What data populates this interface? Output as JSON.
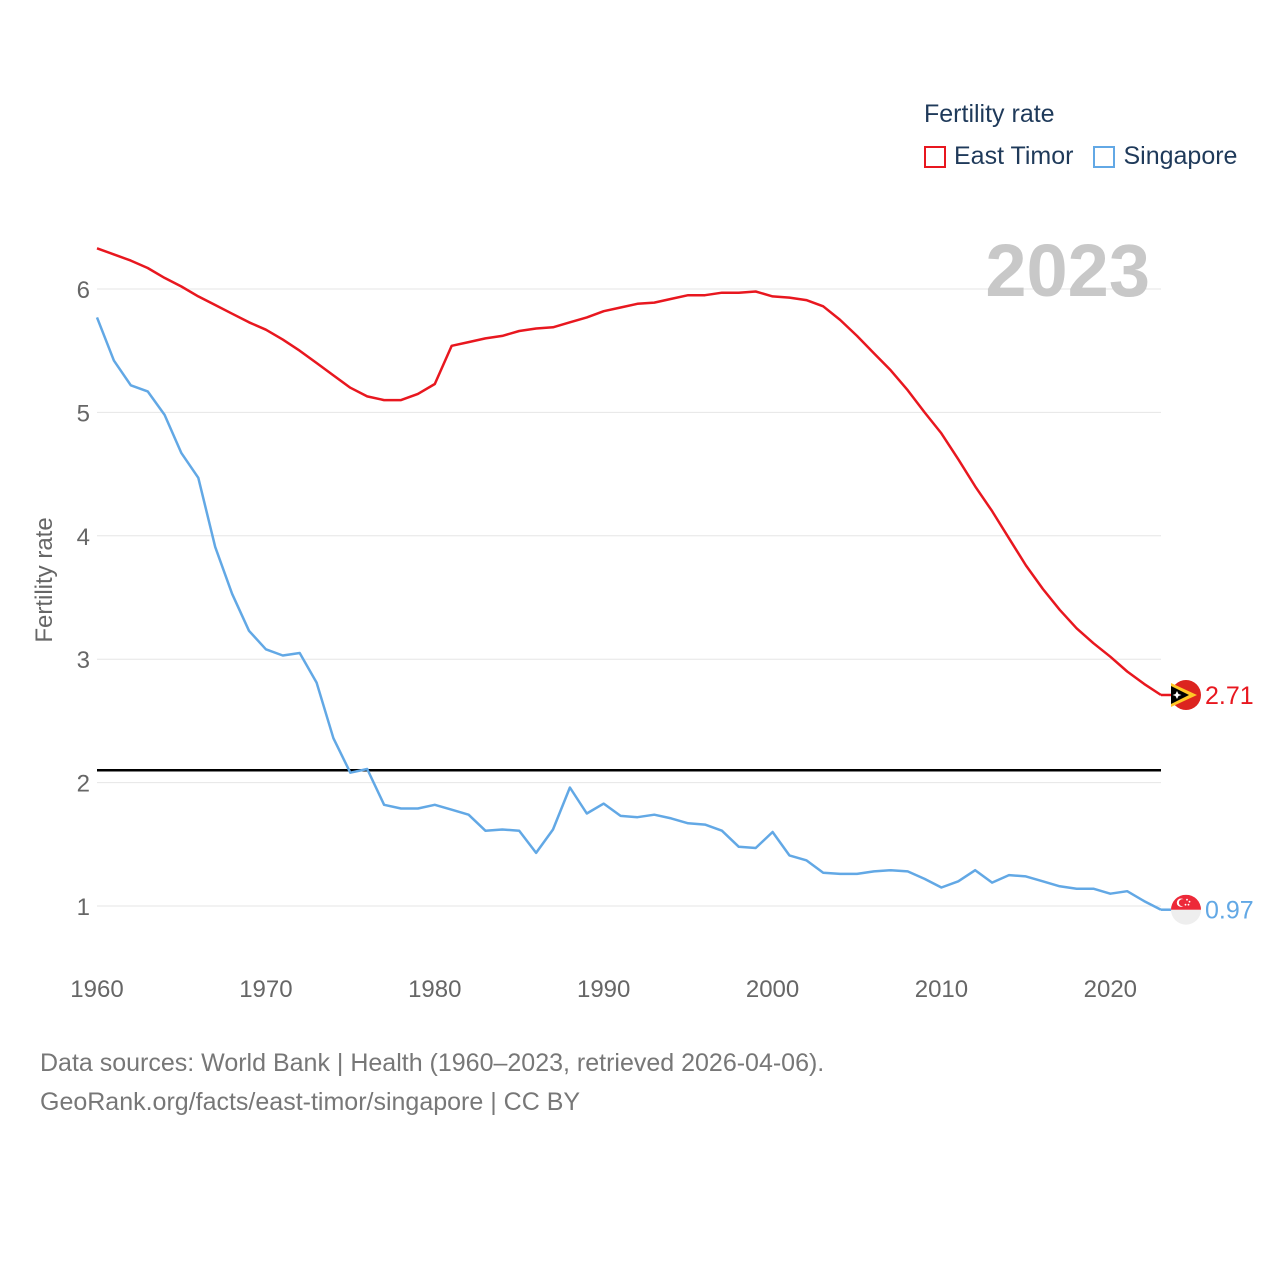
{
  "legend": {
    "title": "Fertility rate",
    "items": [
      {
        "label": "East Timor",
        "color": "#e8171f"
      },
      {
        "label": "Singapore",
        "color": "#62a8e5"
      }
    ]
  },
  "year_label": "2023",
  "footer": {
    "line1": "Data sources: World Bank | Health (1960–2023, retrieved 2026-04-06).",
    "line2": "GeoRank.org/facts/east-timor/singapore | CC BY"
  },
  "chart_data": {
    "type": "line",
    "title": "Fertility rate",
    "ylabel": "Fertility rate",
    "xlabel": "",
    "xlim": [
      1960,
      2023
    ],
    "ylim": [
      0.5,
      6.5
    ],
    "x_ticks": [
      1960,
      1970,
      1980,
      1990,
      2000,
      2010,
      2020
    ],
    "y_ticks": [
      1,
      2,
      3,
      4,
      5,
      6
    ],
    "reference_line": {
      "value": 2.1,
      "color": "#000000"
    },
    "grid": true,
    "x": [
      1960,
      1961,
      1962,
      1963,
      1964,
      1965,
      1966,
      1967,
      1968,
      1969,
      1970,
      1971,
      1972,
      1973,
      1974,
      1975,
      1976,
      1977,
      1978,
      1979,
      1980,
      1981,
      1982,
      1983,
      1984,
      1985,
      1986,
      1987,
      1988,
      1989,
      1990,
      1991,
      1992,
      1993,
      1994,
      1995,
      1996,
      1997,
      1998,
      1999,
      2000,
      2001,
      2002,
      2003,
      2004,
      2005,
      2006,
      2007,
      2008,
      2009,
      2010,
      2011,
      2012,
      2013,
      2014,
      2015,
      2016,
      2017,
      2018,
      2019,
      2020,
      2021,
      2022,
      2023
    ],
    "series": [
      {
        "name": "East Timor",
        "color": "#e8171f",
        "end_label": "2.71",
        "values": [
          6.33,
          6.28,
          6.23,
          6.17,
          6.09,
          6.02,
          5.94,
          5.87,
          5.8,
          5.73,
          5.67,
          5.59,
          5.5,
          5.4,
          5.3,
          5.2,
          5.13,
          5.1,
          5.1,
          5.15,
          5.23,
          5.54,
          5.57,
          5.6,
          5.62,
          5.66,
          5.68,
          5.69,
          5.73,
          5.77,
          5.82,
          5.85,
          5.88,
          5.89,
          5.92,
          5.95,
          5.95,
          5.97,
          5.97,
          5.98,
          5.94,
          5.93,
          5.91,
          5.86,
          5.75,
          5.62,
          5.48,
          5.34,
          5.18,
          5.0,
          4.83,
          4.62,
          4.4,
          4.2,
          3.98,
          3.76,
          3.57,
          3.4,
          3.25,
          3.13,
          3.02,
          2.9,
          2.8,
          2.71
        ]
      },
      {
        "name": "Singapore",
        "color": "#62a8e5",
        "end_label": "0.97",
        "values": [
          5.77,
          5.42,
          5.22,
          5.17,
          4.98,
          4.67,
          4.47,
          3.91,
          3.53,
          3.23,
          3.08,
          3.03,
          3.05,
          2.81,
          2.36,
          2.08,
          2.11,
          1.82,
          1.79,
          1.79,
          1.82,
          1.78,
          1.74,
          1.61,
          1.62,
          1.61,
          1.43,
          1.62,
          1.96,
          1.75,
          1.83,
          1.73,
          1.72,
          1.74,
          1.71,
          1.67,
          1.66,
          1.61,
          1.48,
          1.47,
          1.6,
          1.41,
          1.37,
          1.27,
          1.26,
          1.26,
          1.28,
          1.29,
          1.28,
          1.22,
          1.15,
          1.2,
          1.29,
          1.19,
          1.25,
          1.24,
          1.2,
          1.16,
          1.14,
          1.14,
          1.1,
          1.12,
          1.04,
          0.97
        ]
      }
    ]
  }
}
